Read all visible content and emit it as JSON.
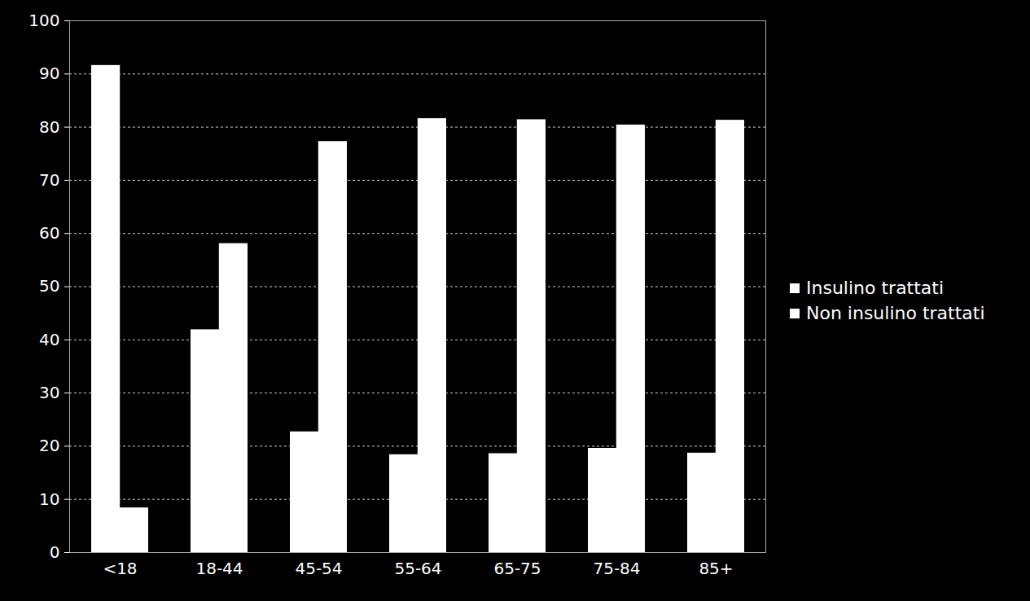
{
  "chart_data": {
    "type": "bar",
    "categories": [
      "<18",
      "18-44",
      "45-54",
      "55-64",
      "65-75",
      "75-84",
      "85+"
    ],
    "series": [
      {
        "name": "Insulino trattati",
        "color": "#ffffff",
        "values": [
          91.6,
          41.9,
          22.7,
          18.4,
          18.6,
          19.6,
          18.7
        ]
      },
      {
        "name": "Non insulino trattati",
        "color": "#ffffff",
        "values": [
          8.4,
          58.1,
          77.3,
          81.6,
          81.4,
          80.4,
          81.3
        ]
      }
    ],
    "ylim": [
      0,
      100
    ],
    "yticks": [
      0,
      10,
      20,
      30,
      40,
      50,
      60,
      70,
      80,
      90,
      100
    ],
    "grid": true,
    "legend": "right"
  }
}
